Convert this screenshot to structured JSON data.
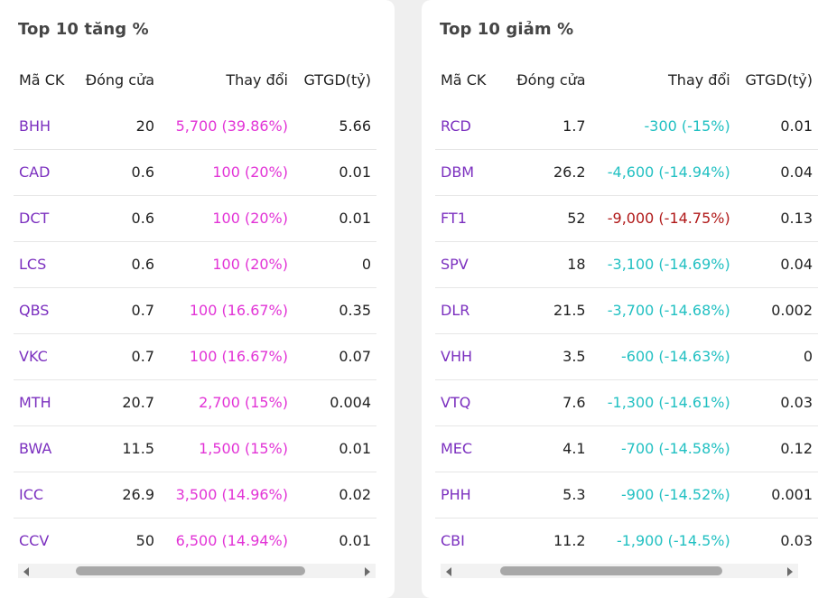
{
  "left": {
    "title": "Top 10 tăng %",
    "headers": {
      "code": "Mã CK",
      "close": "Đóng cửa",
      "change": "Thay đổi",
      "value": "GTGD(tỷ)"
    },
    "rows": [
      {
        "code": "BHH",
        "close": "20",
        "change": "5,700 (39.86%)",
        "value": "5.66",
        "color": "up"
      },
      {
        "code": "CAD",
        "close": "0.6",
        "change": "100 (20%)",
        "value": "0.01",
        "color": "up"
      },
      {
        "code": "DCT",
        "close": "0.6",
        "change": "100 (20%)",
        "value": "0.01",
        "color": "up"
      },
      {
        "code": "LCS",
        "close": "0.6",
        "change": "100 (20%)",
        "value": "0",
        "color": "up"
      },
      {
        "code": "QBS",
        "close": "0.7",
        "change": "100 (16.67%)",
        "value": "0.35",
        "color": "up"
      },
      {
        "code": "VKC",
        "close": "0.7",
        "change": "100 (16.67%)",
        "value": "0.07",
        "color": "up"
      },
      {
        "code": "MTH",
        "close": "20.7",
        "change": "2,700 (15%)",
        "value": "0.004",
        "color": "up"
      },
      {
        "code": "BWA",
        "close": "11.5",
        "change": "1,500 (15%)",
        "value": "0.01",
        "color": "up"
      },
      {
        "code": "ICC",
        "close": "26.9",
        "change": "3,500 (14.96%)",
        "value": "0.02",
        "color": "up"
      },
      {
        "code": "CCV",
        "close": "50",
        "change": "6,500 (14.94%)",
        "value": "0.01",
        "color": "up"
      }
    ]
  },
  "right": {
    "title": "Top 10 giảm %",
    "headers": {
      "code": "Mã CK",
      "close": "Đóng cửa",
      "change": "Thay đổi",
      "value": "GTGD(tỷ)"
    },
    "rows": [
      {
        "code": "RCD",
        "close": "1.7",
        "change": "-300 (-15%)",
        "value": "0.01",
        "color": "down"
      },
      {
        "code": "DBM",
        "close": "26.2",
        "change": "-4,600 (-14.94%)",
        "value": "0.04",
        "color": "down"
      },
      {
        "code": "FT1",
        "close": "52",
        "change": "-9,000 (-14.75%)",
        "value": "0.13",
        "color": "red"
      },
      {
        "code": "SPV",
        "close": "18",
        "change": "-3,100 (-14.69%)",
        "value": "0.04",
        "color": "down"
      },
      {
        "code": "DLR",
        "close": "21.5",
        "change": "-3,700 (-14.68%)",
        "value": "0.002",
        "color": "down"
      },
      {
        "code": "VHH",
        "close": "3.5",
        "change": "-600 (-14.63%)",
        "value": "0",
        "color": "down"
      },
      {
        "code": "VTQ",
        "close": "7.6",
        "change": "-1,300 (-14.61%)",
        "value": "0.03",
        "color": "down"
      },
      {
        "code": "MEC",
        "close": "4.1",
        "change": "-700 (-14.58%)",
        "value": "0.12",
        "color": "down"
      },
      {
        "code": "PHH",
        "close": "5.3",
        "change": "-900 (-14.52%)",
        "value": "0.001",
        "color": "down"
      },
      {
        "code": "CBI",
        "close": "11.2",
        "change": "-1,900 (-14.5%)",
        "value": "0.03",
        "color": "down"
      }
    ]
  },
  "colors": {
    "up": "#e233d6",
    "down": "#21c0c2",
    "red": "#b01818",
    "code": "#7b2fbf"
  },
  "icons": {
    "scroll_left": "scroll-left-arrow-icon",
    "scroll_right": "scroll-right-arrow-icon"
  }
}
